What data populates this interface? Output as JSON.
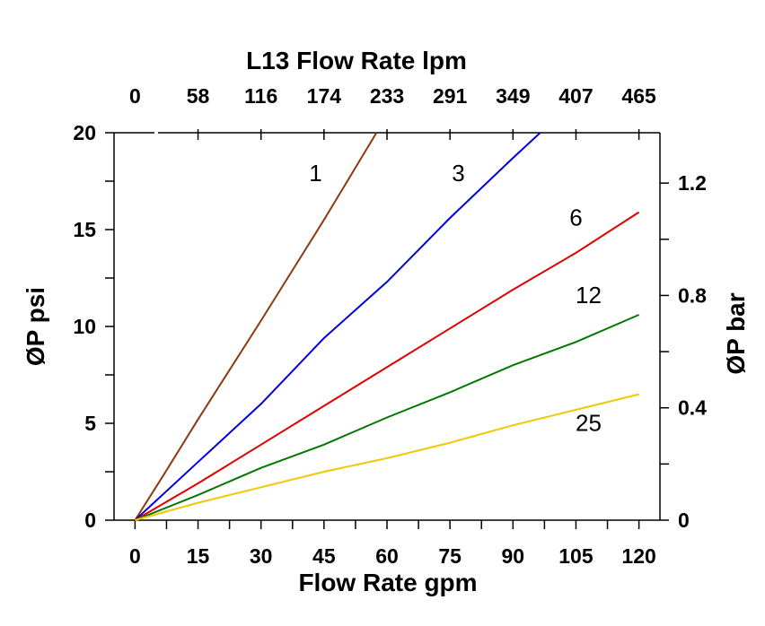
{
  "chart_data": {
    "type": "line",
    "title": "L13 Flow Rate lpm",
    "xlabel": "Flow Rate gpm",
    "ylabel": "ØP psi",
    "y2label": "ØP bar",
    "x2label": "L13 Flow Rate lpm",
    "xlim": [
      -5,
      125
    ],
    "ylim": [
      0,
      20
    ],
    "x_ticks": [
      0,
      15,
      30,
      45,
      60,
      75,
      90,
      105,
      120
    ],
    "y_ticks": [
      0,
      5,
      10,
      15,
      20
    ],
    "x2_ticks": [
      "0",
      "58",
      "116",
      "174",
      "233",
      "291",
      "349",
      "407",
      "465"
    ],
    "y2_ticks": [
      {
        "label": "0",
        "value": 0
      },
      {
        "label": "0.4",
        "value": 0.4
      },
      {
        "label": "0.8",
        "value": 0.8
      },
      {
        "label": "1.2",
        "value": 1.2
      }
    ],
    "y2_scale_psi_per_bar": 14.5,
    "grid": false,
    "series": [
      {
        "name": "1",
        "color": "#8B3A0F",
        "x": [
          0,
          7,
          15,
          30,
          45,
          57.5
        ],
        "y": [
          0,
          2.4,
          5.2,
          10.3,
          15.5,
          20
        ],
        "label_at": [
          43,
          17.5
        ]
      },
      {
        "name": "3",
        "color": "#0000E0",
        "x": [
          0,
          15,
          30,
          45,
          60,
          75,
          90,
          96.5
        ],
        "y": [
          0,
          3.0,
          6.0,
          9.4,
          12.3,
          15.6,
          18.7,
          20
        ],
        "label_at": [
          77,
          17.5
        ]
      },
      {
        "name": "6",
        "color": "#E00000",
        "x": [
          0,
          15,
          30,
          45,
          60,
          75,
          90,
          105,
          120
        ],
        "y": [
          0,
          1.9,
          3.9,
          5.9,
          7.9,
          9.9,
          11.9,
          13.8,
          15.9
        ],
        "label_at": [
          105,
          15.2
        ]
      },
      {
        "name": "12",
        "color": "#007800",
        "x": [
          0,
          15,
          30,
          45,
          60,
          75,
          90,
          105,
          120
        ],
        "y": [
          0,
          1.3,
          2.7,
          3.9,
          5.3,
          6.6,
          8.0,
          9.2,
          10.6
        ],
        "label_at": [
          108,
          11.2
        ]
      },
      {
        "name": "25",
        "color": "#F0C800",
        "x": [
          0,
          15,
          30,
          45,
          60,
          75,
          90,
          105,
          120
        ],
        "y": [
          0,
          0.9,
          1.7,
          2.5,
          3.2,
          4.0,
          4.9,
          5.7,
          6.5
        ],
        "label_at": [
          108,
          4.6
        ]
      }
    ]
  }
}
